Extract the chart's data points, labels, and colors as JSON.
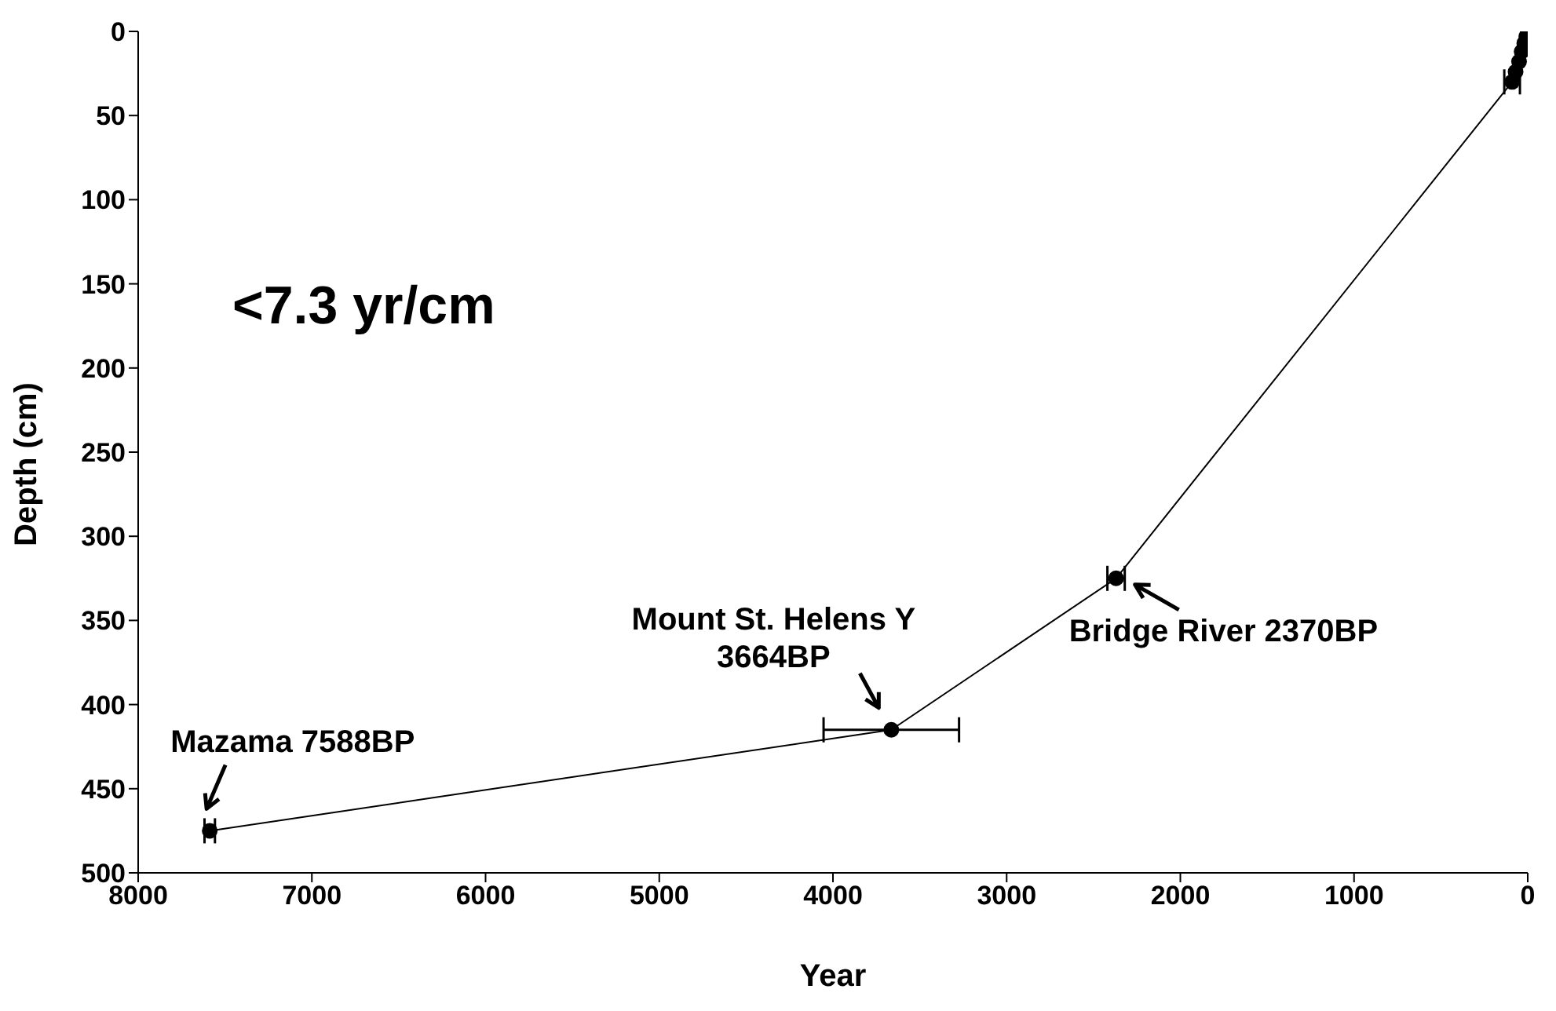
{
  "chart_data": {
    "type": "line",
    "xlabel": "Year",
    "ylabel": "Depth (cm)",
    "xlim": [
      8000,
      0
    ],
    "xticks": [
      8000,
      7000,
      6000,
      5000,
      4000,
      3000,
      2000,
      1000,
      0
    ],
    "ylim": [
      500,
      0
    ],
    "yticks": [
      0,
      50,
      100,
      150,
      200,
      250,
      300,
      350,
      400,
      450,
      500
    ],
    "grid": false,
    "legend": false,
    "marker": "circle",
    "line_style": "solid",
    "series": [
      {
        "color": "#000000",
        "x": [
          7588,
          3664,
          2370,
          90,
          70,
          50,
          35,
          20,
          8,
          0
        ],
        "values": [
          475,
          415,
          325,
          30,
          24,
          18,
          12,
          7,
          3,
          0
        ],
        "xerrors": [
          30,
          390,
          50,
          45,
          null,
          null,
          null,
          null,
          null,
          null
        ]
      }
    ],
    "annotations": [
      "<7.3 yr/cm",
      {
        "text": "Mazama 7588BP",
        "x": 7588,
        "y": 475
      },
      {
        "text": "Mount St. Helens Y\n3664BP",
        "x": 3664,
        "y": 415
      },
      {
        "text": "Bridge River 2370BP",
        "x": 2370,
        "y": 325
      }
    ]
  }
}
